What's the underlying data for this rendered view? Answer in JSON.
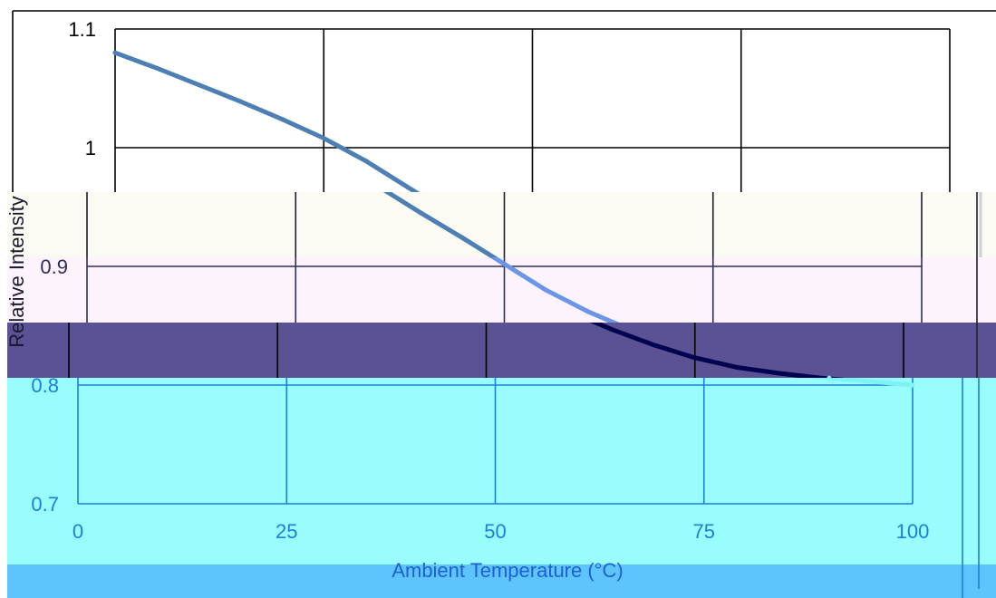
{
  "chart_data": {
    "type": "line",
    "title": "",
    "xlabel": "Ambient Temperature (°C)",
    "ylabel": "Relative Intensity",
    "x_ticks": [
      0,
      25,
      50,
      75,
      100
    ],
    "y_ticks": [
      0.7,
      0.8,
      0.9,
      1,
      1.1
    ],
    "x_tick_labels": [
      "0",
      "25",
      "50",
      "75",
      "100"
    ],
    "y_tick_labels": [
      "0.7",
      "0.8",
      "0.9",
      "1",
      "1.1"
    ],
    "xlim": [
      0,
      100
    ],
    "ylim": [
      0.7,
      1.1
    ],
    "grid": true,
    "legend": "none",
    "series": [
      {
        "x": [
          0,
          5,
          10,
          15,
          20,
          25,
          30,
          35,
          40,
          45,
          50,
          55,
          60,
          65,
          70,
          75,
          80,
          85,
          90,
          95,
          100
        ],
        "y": [
          1.08,
          1.067,
          1.053,
          1.039,
          1.024,
          1.008,
          0.989,
          0.967,
          0.945,
          0.924,
          0.902,
          0.88,
          0.862,
          0.847,
          0.834,
          0.823,
          0.815,
          0.81,
          0.806,
          0.803,
          0.8
        ]
      }
    ]
  }
}
